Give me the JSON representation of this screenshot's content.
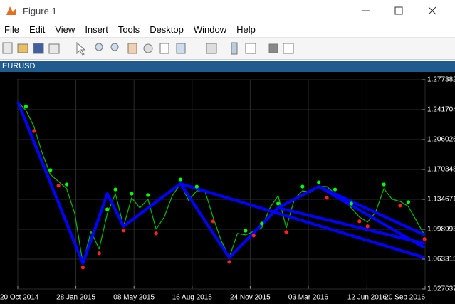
{
  "window": {
    "title": "Figure 1",
    "menu": [
      "File",
      "Edit",
      "View",
      "Insert",
      "Tools",
      "Desktop",
      "Window",
      "Help"
    ],
    "panel_title": "EURUSD"
  },
  "chart_data": {
    "type": "line",
    "xlim": [
      "2014-10-20",
      "2016-09-20"
    ],
    "xticks": [
      {
        "value": "2014-10-20",
        "label": "20 Oct 2014"
      },
      {
        "value": "2015-01-28",
        "label": "28 Jan 2015"
      },
      {
        "value": "2015-05-08",
        "label": "08 May 2015"
      },
      {
        "value": "2015-08-16",
        "label": "16 Aug 2015"
      },
      {
        "value": "2015-11-24",
        "label": "24 Nov 2015"
      },
      {
        "value": "2016-03-03",
        "label": "03 Mar 2016"
      },
      {
        "value": "2016-06-12",
        "label": "12 Jun 2016"
      },
      {
        "value": "2016-09-20",
        "label": "20 Sep 2016"
      }
    ],
    "ylim": [
      1.027637,
      1.277382
    ],
    "yticks": [
      1.027637,
      1.063315,
      1.098993,
      1.134671,
      1.170348,
      1.206026,
      1.241704,
      1.277382
    ],
    "grid": true,
    "series": [
      {
        "color": "#00c000",
        "marker": "none",
        "x": [
          "2014-10-20",
          "2014-11-03",
          "2014-11-17",
          "2014-12-01",
          "2014-12-15",
          "2014-12-29",
          "2015-01-12",
          "2015-01-26",
          "2015-02-09",
          "2015-02-23",
          "2015-03-09",
          "2015-03-23",
          "2015-04-06",
          "2015-04-20",
          "2015-05-04",
          "2015-05-18",
          "2015-06-01",
          "2015-06-15",
          "2015-06-29",
          "2015-07-13",
          "2015-07-27",
          "2015-08-10",
          "2015-08-24",
          "2015-09-07",
          "2015-09-21",
          "2015-10-05",
          "2015-10-19",
          "2015-11-02",
          "2015-11-16",
          "2015-11-30",
          "2015-12-14",
          "2015-12-28",
          "2016-01-11",
          "2016-01-25",
          "2016-02-08",
          "2016-02-22",
          "2016-03-07",
          "2016-03-21",
          "2016-04-04",
          "2016-04-18",
          "2016-05-02",
          "2016-05-16",
          "2016-05-30",
          "2016-06-13",
          "2016-06-27",
          "2016-07-11",
          "2016-07-25",
          "2016-08-08",
          "2016-08-22",
          "2016-09-05",
          "2016-09-19"
        ],
        "values": [
          1.2511,
          1.2409,
          1.2213,
          1.1899,
          1.1645,
          1.156,
          1.1475,
          1.1178,
          1.0583,
          1.0965,
          1.0753,
          1.1178,
          1.1415,
          1.1025,
          1.1364,
          1.1246,
          1.1348,
          1.0991,
          1.1135,
          1.139,
          1.1534,
          1.1331,
          1.1449,
          1.1449,
          1.1135,
          1.0855,
          1.0651,
          1.094,
          1.0923,
          1.0965,
          1.1008,
          1.1246,
          1.139,
          1.1008,
          1.1348,
          1.1449,
          1.1432,
          1.15,
          1.15,
          1.1415,
          1.1348,
          1.1246,
          1.1135,
          1.1076,
          1.1195,
          1.1475,
          1.1348,
          1.1322,
          1.1263,
          1.1093,
          1.0923
        ]
      },
      {
        "color": "#0000ff",
        "marker": "none",
        "width": 4,
        "x": [
          "2014-10-20",
          "2015-02-09",
          "2015-03-23",
          "2015-04-20",
          "2015-07-27",
          "2015-10-19",
          "2016-01-11",
          "2016-03-21",
          "2016-09-19",
          "2015-07-27",
          "2015-07-27",
          "2016-09-19",
          "2016-03-21",
          "2016-03-21",
          "2016-09-19",
          "2016-01-11",
          "2016-01-11",
          "2016-09-19"
        ],
        "values": [
          1.2511,
          1.0583,
          1.1415,
          1.1025,
          1.1534,
          1.0651,
          1.1246,
          1.15,
          1.0923,
          null,
          1.1534,
          1.0651,
          null,
          1.15,
          1.077,
          null,
          1.1246,
          1.082
        ]
      },
      {
        "color": "#00ff00",
        "marker": "dot",
        "x": [
          "2014-11-03",
          "2014-12-15",
          "2015-01-12",
          "2015-03-23",
          "2015-04-06",
          "2015-05-04",
          "2015-06-01",
          "2015-07-27",
          "2015-08-24",
          "2015-11-16",
          "2015-12-14",
          "2016-01-11",
          "2016-02-22",
          "2016-03-21",
          "2016-04-18",
          "2016-05-16",
          "2016-07-11",
          "2016-08-22"
        ],
        "values": [
          1.2455,
          1.1695,
          1.1525,
          1.1228,
          1.1465,
          1.1414,
          1.1398,
          1.1584,
          1.1499,
          1.0973,
          1.1058,
          1.1296,
          1.1499,
          1.155,
          1.1465,
          1.1296,
          1.1525,
          1.1313
        ]
      },
      {
        "color": "#ff2020",
        "marker": "dot",
        "x": [
          "2014-11-17",
          "2014-12-29",
          "2015-02-09",
          "2015-03-09",
          "2015-04-20",
          "2015-06-15",
          "2015-09-21",
          "2015-10-19",
          "2015-11-30",
          "2016-01-25",
          "2016-04-04",
          "2016-05-30",
          "2016-06-13",
          "2016-08-08",
          "2016-09-19"
        ],
        "values": [
          1.2163,
          1.151,
          1.0533,
          1.0703,
          1.0975,
          1.0941,
          1.1085,
          1.0601,
          1.0915,
          1.0958,
          1.1365,
          1.1085,
          1.1026,
          1.1272,
          1.0873
        ]
      }
    ]
  }
}
